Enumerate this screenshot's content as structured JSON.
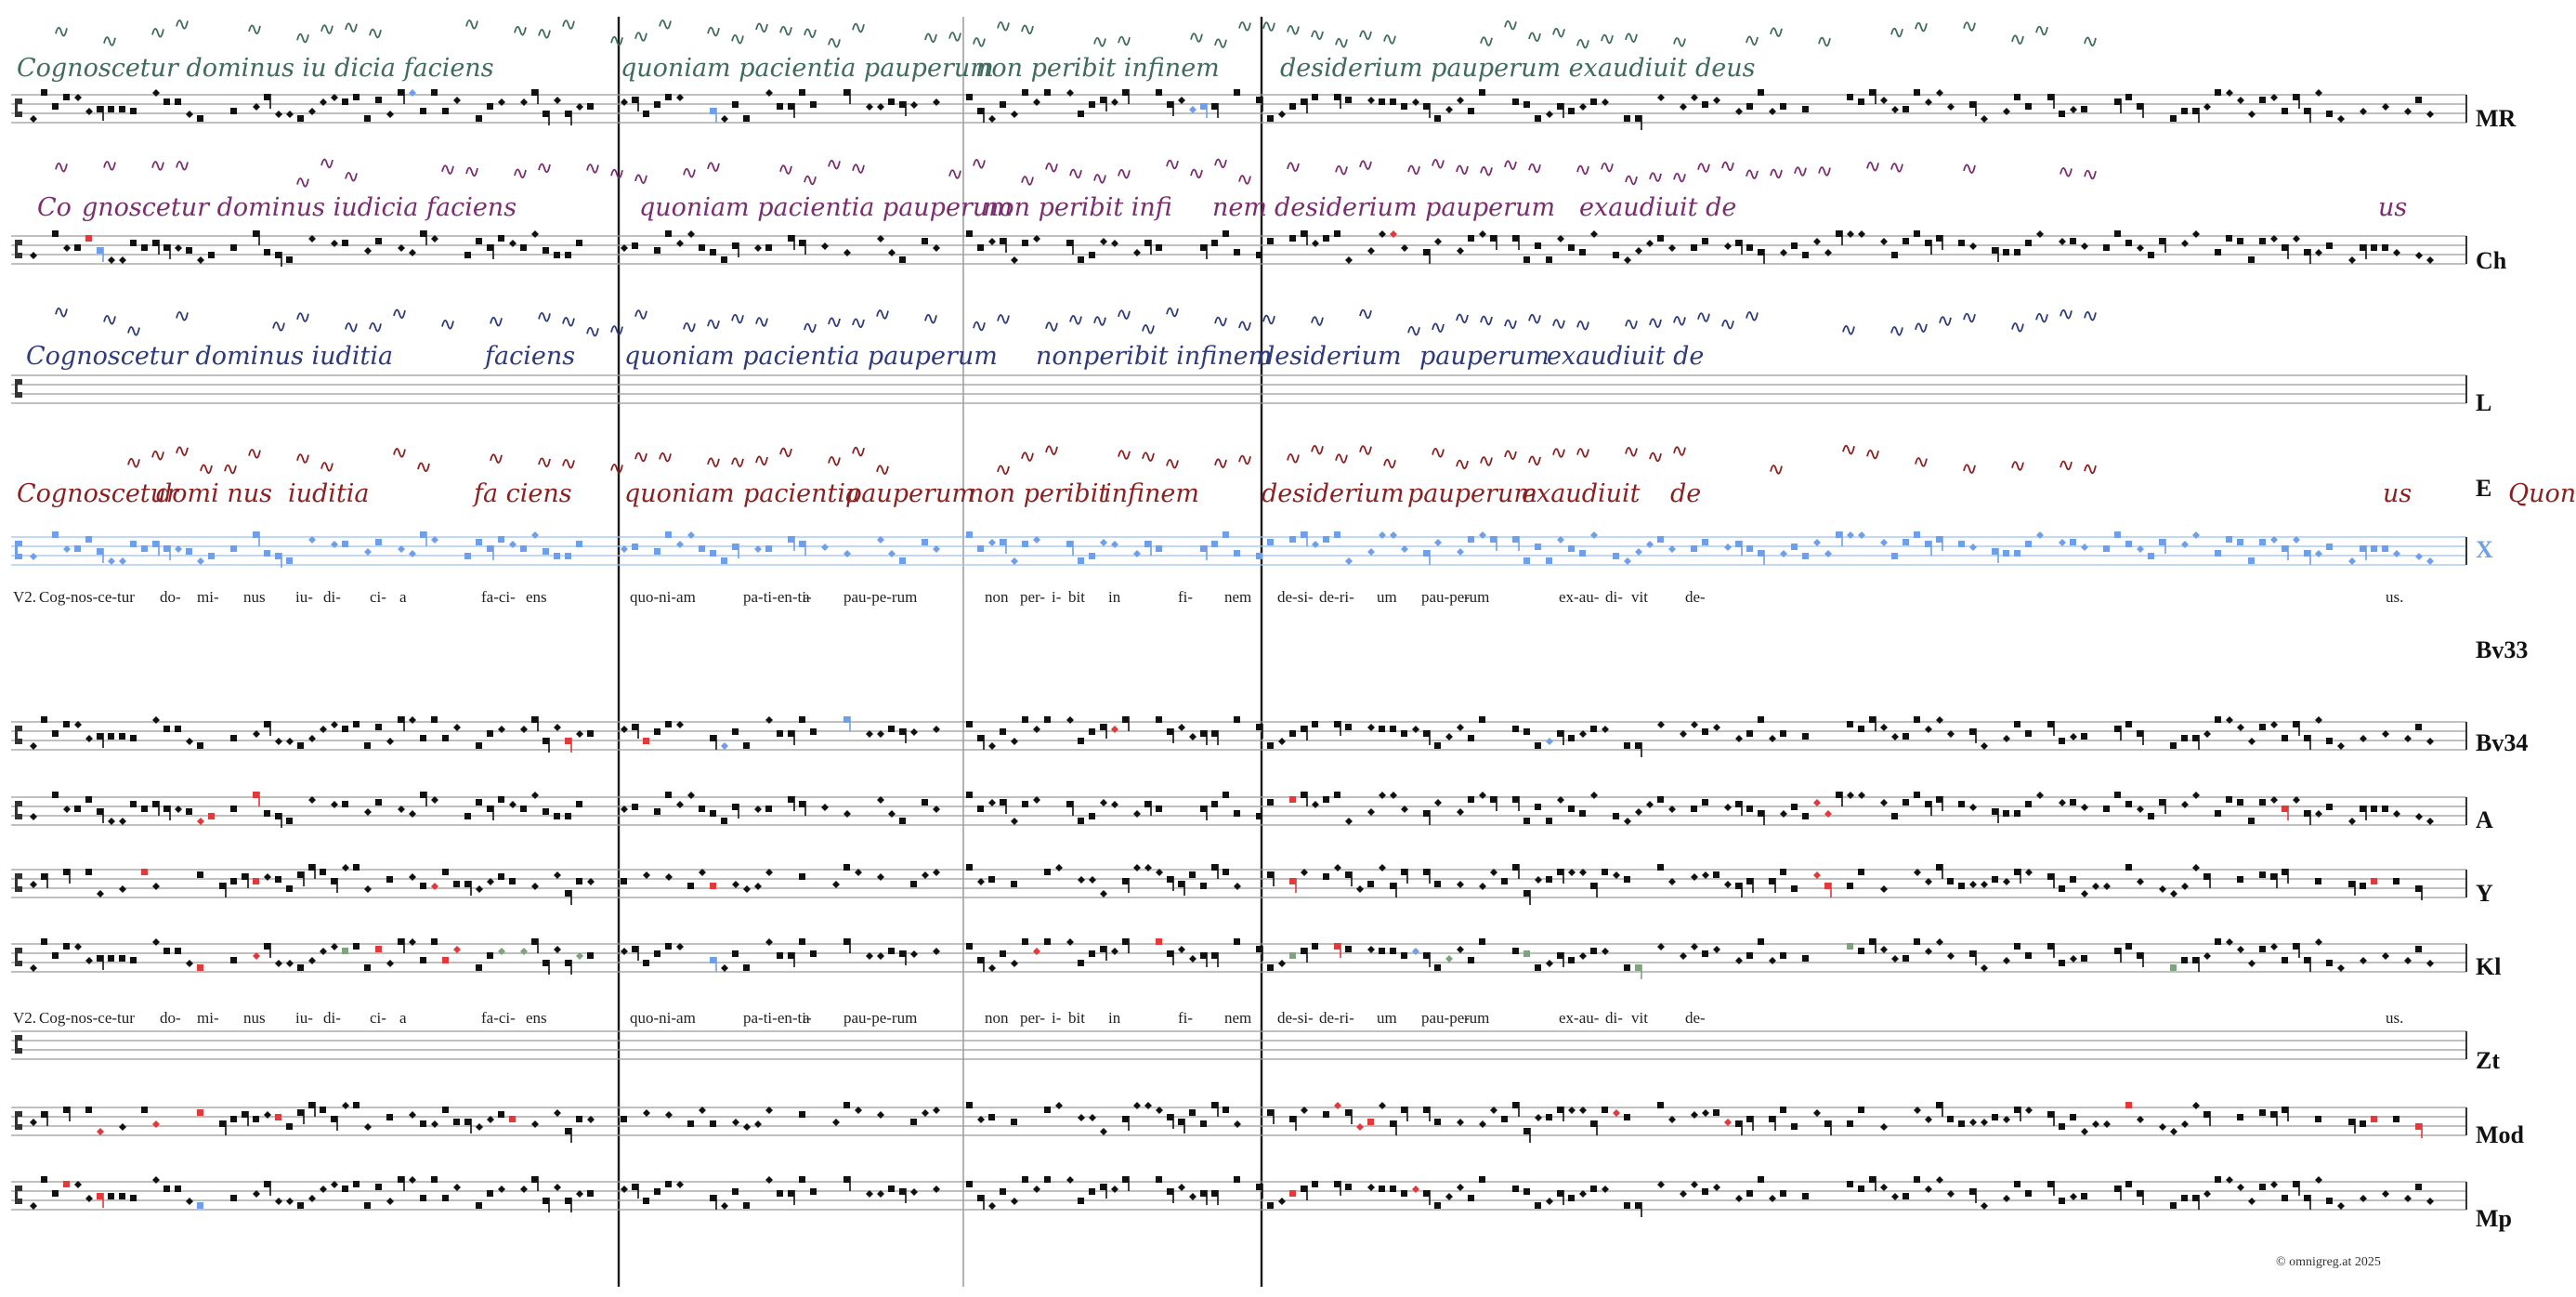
{
  "colors": {
    "ink": "#111111",
    "staff": "#9a9a9a",
    "blue": "#6f9fe8",
    "red": "#e03a3a",
    "green": "#7fa37f",
    "ms_green": "#3f6b5c",
    "ms_purple": "#7a2d6f",
    "ms_navy": "#2e3a7a",
    "ms_red": "#8c1f1f"
  },
  "manuscripts": [
    {
      "siglum": "MR",
      "color": "#3f6b5c",
      "words": [
        "Cognoscetur dominus iu dicia faciens",
        "quoniam pacientia pauperum",
        "non peribit infinem",
        "desiderium pauperum exaudiuit",
        "deus"
      ]
    },
    {
      "siglum": "Ch",
      "color": "#7a2d6f",
      "words": [
        "Co",
        "gnoscetur dominus iudicia faciens",
        "quoniam pacientia pauperum",
        "non peribit infi",
        "nem",
        "desiderium pauperum",
        "exaudiuit de",
        "us"
      ]
    },
    {
      "siglum": "L",
      "color": "#2e3a7a",
      "words": [
        "Cognoscetur dominus iuditia",
        "faciens",
        "quoniam pacientia pauperum",
        "nonperibit infinem",
        "desiderium",
        "pauperum",
        "exaudiuit de"
      ]
    },
    {
      "siglum": "E",
      "color": "#8c1f1f",
      "words": [
        "Cognoscetur",
        "domi nus",
        "iuditia",
        "fa ciens",
        "quoniam",
        "pacientia",
        "pauperum",
        "non peribit",
        "infinem",
        "desiderium",
        "pauperum",
        "exaudiuit",
        "de",
        "us",
        "Quon"
      ]
    }
  ],
  "lyrics_lines": [
    {
      "prefix": "V2.",
      "syllables": [
        "Cog-nos-ce-tur",
        "do-",
        "mi-",
        "nus",
        "iu-",
        "di-",
        "ci-",
        "a",
        "fa-ci-",
        "ens",
        "quo-ni-am",
        "pa-ti-en-ti-",
        "a",
        "pau-pe-rum",
        "non",
        "per-",
        "i-",
        "bit",
        "in",
        "fi-",
        "nem",
        "de-si-",
        "de-ri-",
        "um",
        "pau-pe-",
        "rum",
        "ex-au-",
        "di-",
        "vit",
        "de-",
        "us."
      ]
    },
    {
      "prefix": "V2.",
      "syllables": [
        "Cog-nos-ce-tur",
        "do-",
        "mi-",
        "nus",
        "iu-",
        "di-",
        "ci-",
        "a",
        "fa-ci-",
        "ens",
        "quo-ni-am",
        "pa-ti-en-ti-",
        "a",
        "pau-pe-rum",
        "non",
        "per-",
        "i-",
        "bit",
        "in",
        "fi-",
        "nem",
        "de-si-",
        "de-ri-",
        "um",
        "pau-pe-",
        "rum",
        "ex-au-",
        "di-",
        "vit",
        "de-",
        "us."
      ]
    }
  ],
  "staves": [
    {
      "siglum": "MR",
      "accent": [
        [
          440,
          "blue"
        ],
        [
          760,
          "blue"
        ],
        [
          1280,
          "blue"
        ],
        [
          1295,
          "blue"
        ],
        [
          1310,
          "blue"
        ]
      ]
    },
    {
      "siglum": "Ch",
      "accent": [
        [
          95,
          "red"
        ],
        [
          105,
          "blue"
        ],
        [
          385,
          "blue"
        ],
        [
          1495,
          "red"
        ]
      ]
    },
    {
      "siglum": "L",
      "accent": []
    },
    {
      "siglum": "E",
      "accent": []
    },
    {
      "siglum": "X",
      "accent": []
    },
    {
      "siglum": "Bv33",
      "accent": []
    },
    {
      "siglum": "Bv34",
      "accent": [
        [
          240,
          "blue"
        ],
        [
          610,
          "red"
        ],
        [
          690,
          "red"
        ],
        [
          780,
          "blue"
        ],
        [
          905,
          "blue"
        ],
        [
          1200,
          "red"
        ],
        [
          1660,
          "blue"
        ],
        [
          1955,
          "red"
        ],
        [
          1965,
          "red"
        ]
      ]
    },
    {
      "siglum": "A",
      "accent": [
        [
          215,
          "red"
        ],
        [
          225,
          "red"
        ],
        [
          270,
          "red"
        ],
        [
          1385,
          "red"
        ],
        [
          1955,
          "red"
        ],
        [
          1965,
          "red"
        ],
        [
          2455,
          "red"
        ]
      ]
    },
    {
      "siglum": "Y",
      "accent": [
        [
          150,
          "red"
        ],
        [
          220,
          "red"
        ],
        [
          230,
          "red"
        ],
        [
          275,
          "red"
        ],
        [
          465,
          "red"
        ],
        [
          760,
          "red"
        ],
        [
          1385,
          "red"
        ],
        [
          1520,
          "red"
        ],
        [
          1955,
          "red"
        ],
        [
          1965,
          "red"
        ],
        [
          2550,
          "red"
        ]
      ]
    },
    {
      "siglum": "Kl",
      "accent": [
        [
          155,
          "green"
        ],
        [
          215,
          "red"
        ],
        [
          225,
          "red"
        ],
        [
          270,
          "red"
        ],
        [
          370,
          "green"
        ],
        [
          405,
          "red"
        ],
        [
          480,
          "red"
        ],
        [
          490,
          "red"
        ],
        [
          505,
          "red"
        ],
        [
          540,
          "green"
        ],
        [
          560,
          "green"
        ],
        [
          620,
          "green"
        ],
        [
          760,
          "blue"
        ],
        [
          1110,
          "red"
        ],
        [
          1240,
          "red"
        ],
        [
          1250,
          "red"
        ],
        [
          1385,
          "green"
        ],
        [
          1440,
          "red"
        ],
        [
          1520,
          "blue"
        ],
        [
          1560,
          "green"
        ],
        [
          1620,
          "green"
        ],
        [
          1640,
          "green"
        ],
        [
          1760,
          "green"
        ],
        [
          1990,
          "green"
        ],
        [
          2190,
          "green"
        ],
        [
          2340,
          "green"
        ],
        [
          2550,
          "red"
        ]
      ]
    },
    {
      "siglum": "Zt",
      "accent": []
    },
    {
      "siglum": "Mod",
      "accent": [
        [
          100,
          "red"
        ],
        [
          140,
          "red"
        ],
        [
          160,
          "red"
        ],
        [
          215,
          "red"
        ],
        [
          225,
          "red"
        ],
        [
          290,
          "red"
        ],
        [
          300,
          "red"
        ],
        [
          530,
          "red"
        ],
        [
          545,
          "red"
        ],
        [
          555,
          "red"
        ],
        [
          1440,
          "red"
        ],
        [
          1455,
          "red"
        ],
        [
          1475,
          "red"
        ],
        [
          1740,
          "red"
        ],
        [
          1755,
          "red"
        ],
        [
          1855,
          "red"
        ],
        [
          2190,
          "red"
        ],
        [
          2290,
          "red"
        ],
        [
          2550,
          "red"
        ],
        [
          2600,
          "red"
        ],
        [
          2615,
          "red"
        ]
      ]
    },
    {
      "siglum": "Mp",
      "accent": [
        [
          65,
          "red"
        ],
        [
          100,
          "red"
        ],
        [
          155,
          "red"
        ],
        [
          215,
          "blue"
        ],
        [
          225,
          "blue"
        ],
        [
          530,
          "red"
        ],
        [
          545,
          "red"
        ],
        [
          1385,
          "red"
        ],
        [
          1520,
          "red"
        ],
        [
          2550,
          "red"
        ]
      ]
    }
  ],
  "copyright": "© omnigreg.at   2025"
}
